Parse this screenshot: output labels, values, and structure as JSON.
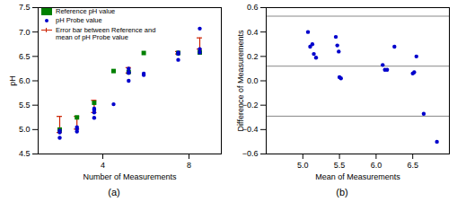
{
  "chart_data": [
    {
      "type": "scatter",
      "title": "(a)",
      "xlabel": "Number of Measurements",
      "ylabel": "pH",
      "xlim": [
        1.0,
        9.5
      ],
      "ylim": [
        4.5,
        7.5
      ],
      "xticks": [
        4,
        8
      ],
      "yticks": [
        4.5,
        {
          "value": 5.0,
          "label": "5.0"
        },
        5.5,
        {
          "value": 6.0,
          "label": "6.0"
        },
        6.5,
        {
          "value": 7.0,
          "label": "7.0"
        },
        7.5
      ],
      "grid": false,
      "legend": "upper left",
      "series": [
        {
          "name": "Reference pH value",
          "color": "#008000",
          "marker": "square",
          "x": [
            2.0,
            2.8,
            3.6,
            4.5,
            5.2,
            5.9,
            7.5,
            8.5
          ],
          "values": [
            5.0,
            5.25,
            5.55,
            6.2,
            6.18,
            6.57,
            6.57,
            6.58
          ]
        },
        {
          "name": "pH Probe value",
          "color": "#0000cc",
          "marker": "circle",
          "x": [
            2.0,
            2.0,
            2.0,
            2.8,
            2.8,
            2.8,
            3.6,
            3.6,
            3.6,
            3.6,
            4.5,
            5.2,
            5.2,
            5.2,
            5.2,
            5.9,
            5.9,
            7.5,
            7.5,
            7.5,
            8.5,
            8.5,
            8.5
          ],
          "values": [
            4.83,
            4.94,
            4.98,
            4.96,
            5.01,
            5.05,
            5.24,
            5.35,
            5.4,
            5.43,
            5.52,
            6.0,
            6.16,
            6.18,
            6.25,
            6.12,
            6.15,
            6.43,
            6.55,
            6.58,
            6.58,
            6.65,
            7.07
          ]
        },
        {
          "name": "Error bar between Reference and\nmean of pH Probe value",
          "type": "errorbar",
          "color": "#cc2200",
          "x": [
            2.0,
            2.8,
            3.6,
            5.2,
            7.5,
            8.5
          ],
          "low": [
            4.94,
            5.01,
            5.35,
            6.16,
            6.55,
            6.65
          ],
          "high": [
            5.27,
            5.27,
            5.6,
            6.27,
            6.6,
            6.88
          ]
        }
      ]
    },
    {
      "type": "scatter",
      "title": "(b)",
      "xlabel": "Mean of Measurements",
      "ylabel": "Difference of Measurements",
      "xlim": [
        4.5,
        7.0
      ],
      "ylim": [
        -0.6,
        0.6
      ],
      "xticks": [
        {
          "value": 5.0,
          "label": "5.0"
        },
        5.5,
        {
          "value": 6.0,
          "label": "6.0"
        },
        6.5
      ],
      "yticks": [
        {
          "value": -0.6,
          "label": "−0.6"
        },
        {
          "value": -0.4,
          "label": "−0.4"
        },
        {
          "value": -0.2,
          "label": "−0.2"
        },
        {
          "value": 0.0,
          "label": "0.0"
        },
        0.2,
        0.4,
        0.6
      ],
      "grid": false,
      "series": [
        {
          "color": "#0000cc",
          "marker": "circle",
          "x": [
            5.07,
            5.1,
            5.13,
            5.15,
            5.18,
            5.45,
            5.47,
            5.49,
            5.5,
            5.52,
            6.09,
            6.12,
            6.15,
            6.25,
            6.5,
            6.52,
            6.55,
            6.65,
            6.83
          ],
          "values": [
            0.4,
            0.28,
            0.3,
            0.22,
            0.19,
            0.36,
            0.29,
            0.24,
            0.03,
            0.02,
            0.13,
            0.09,
            0.09,
            0.28,
            0.06,
            0.07,
            0.2,
            -0.27,
            -0.5
          ]
        }
      ],
      "hlines": {
        "values": [
          0.12,
          0.53,
          -0.29
        ],
        "color": "#888888"
      }
    }
  ]
}
